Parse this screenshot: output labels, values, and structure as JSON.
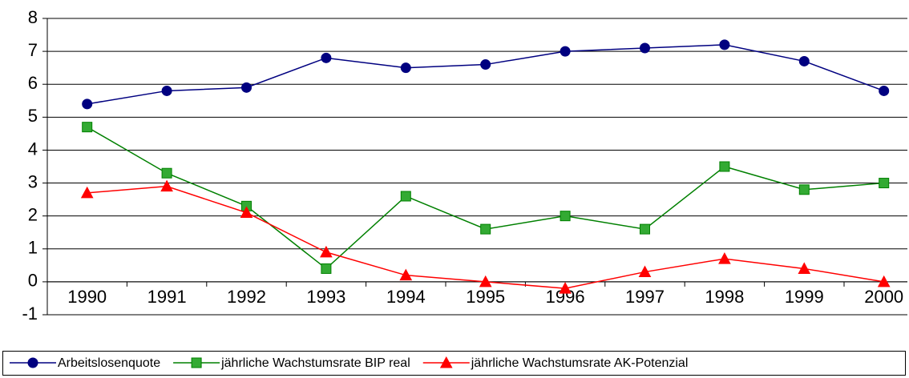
{
  "chart_data": {
    "type": "line",
    "categories": [
      "1990",
      "1991",
      "1992",
      "1993",
      "1994",
      "1995",
      "1996",
      "1997",
      "1998",
      "1999",
      "2000"
    ],
    "series": [
      {
        "name": "Arbeitslosenquote",
        "color": "#000080",
        "marker": "circle",
        "values": [
          5.4,
          5.8,
          5.9,
          6.8,
          6.5,
          6.6,
          7.0,
          7.1,
          7.2,
          6.7,
          5.8
        ]
      },
      {
        "name": "jährliche Wachstumsrate BIP real",
        "color": "#008000",
        "marker": "square",
        "values": [
          4.7,
          3.3,
          2.3,
          0.4,
          2.6,
          1.6,
          2.0,
          1.6,
          3.5,
          2.8,
          3.0
        ]
      },
      {
        "name": "jährliche Wachstumsrate AK-Potenzial",
        "color": "#ff0000",
        "marker": "triangle",
        "values": [
          2.7,
          2.9,
          2.1,
          0.9,
          0.2,
          0.0,
          -0.2,
          0.3,
          0.7,
          0.4,
          0.0
        ]
      }
    ],
    "ylim": [
      -1,
      8
    ],
    "yticks": [
      -1,
      0,
      1,
      2,
      3,
      4,
      5,
      6,
      7,
      8
    ],
    "grid": true,
    "legend": "bottom"
  }
}
